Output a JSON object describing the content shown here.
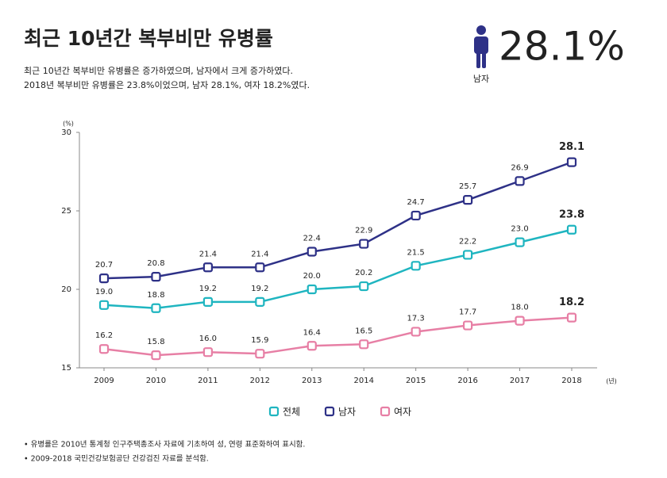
{
  "chart_data": {
    "type": "line",
    "title": "최근 10년간 복부비만 유병률",
    "subtitle": [
      "최근 10년간 복부비만 유병률은 증가하였으며, 남자에서 크게 증가하였다.",
      "2018년 복부비만 유병률은 23.8%이었으며, 남자 28.1%, 여자 18.2%였다."
    ],
    "highlight": {
      "text": "28.1%",
      "label": "남자"
    },
    "y_unit": "(%)",
    "x_unit": "(년)",
    "categories": [
      "2009",
      "2010",
      "2011",
      "2012",
      "2013",
      "2014",
      "2015",
      "2016",
      "2017",
      "2018"
    ],
    "series": [
      {
        "name": "전체",
        "color": "#1fb5c0",
        "values": [
          19.0,
          18.8,
          19.2,
          19.2,
          20.0,
          20.2,
          21.5,
          22.2,
          23.0,
          23.8
        ],
        "value_labels": [
          "19.0",
          "18.8",
          "19.2",
          "19.2",
          "20.0",
          "20.2",
          "21.5",
          "22.2",
          "23.0",
          "23.8"
        ]
      },
      {
        "name": "남자",
        "color": "#2e3187",
        "values": [
          20.7,
          20.8,
          21.4,
          21.4,
          22.4,
          22.9,
          24.7,
          25.7,
          26.9,
          28.1
        ],
        "value_labels": [
          "20.7",
          "20.8",
          "21.4",
          "21.4",
          "22.4",
          "22.9",
          "24.7",
          "25.7",
          "26.9",
          "28.1"
        ]
      },
      {
        "name": "여자",
        "color": "#e77fa5",
        "values": [
          16.2,
          15.8,
          16.0,
          15.9,
          16.4,
          16.5,
          17.3,
          17.7,
          18.0,
          18.2
        ],
        "value_labels": [
          "16.2",
          "15.8",
          "16.0",
          "15.9",
          "16.4",
          "16.5",
          "17.3",
          "17.7",
          "18.0",
          "18.2"
        ]
      }
    ],
    "ylim": [
      15,
      30
    ],
    "yticks": [
      15,
      20,
      25,
      30
    ],
    "notes": [
      "• 유병률은 2010년 통계청 인구주택총조사 자료에 기초하여 성, 연령 표준화하여 표시함.",
      "• 2009-2018 국민건강보험공단 건강검진 자료를 분석함."
    ]
  }
}
